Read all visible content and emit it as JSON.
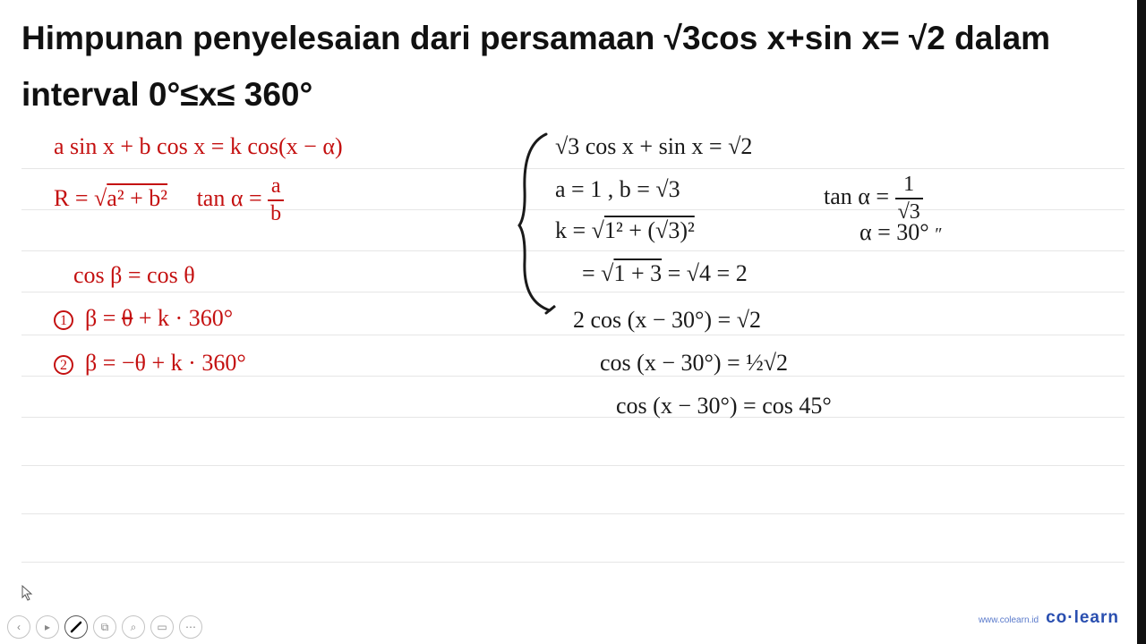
{
  "title": "Himpunan penyelesaian dari persamaan √3cos x+sin x= √2 dalam interval 0°≤x≤ 360°",
  "formulas": {
    "red1": "a sin x + b cos x  =  k cos(x − α)",
    "red2_lhs": "R = √",
    "red2_rad": "a² + b²",
    "red2_tan": "tan α =",
    "red2_frac_num": "a",
    "red2_frac_den": "b",
    "red3": "cos β = cos θ",
    "red4_circ": "1",
    "red4": "β = θ + k · 360°",
    "red5_circ": "2",
    "red5": "β = −θ + k · 360°"
  },
  "work": {
    "w1": "√3 cos x + sin x = √2",
    "w2": "a = 1 ,  b = √3",
    "w3": "k = √",
    "w3_rad": "1² + (√3)²",
    "w4": "= √",
    "w4_rad": "1 + 3",
    "w4_tail": "  = √4 = 2",
    "w5": "tan α =",
    "w5_num": "1",
    "w5_den": "√3",
    "w6": "α = 30°",
    "w7": "2 cos (x − 30°)  = √2",
    "w8": "cos (x − 30°)  = ½√2",
    "w9": "cos (x − 30°) = cos 45°"
  },
  "brand_url": "www.colearn.id",
  "brand_name": "co·learn",
  "ruled_lines": [
    188,
    234,
    280,
    326,
    374,
    420,
    466,
    520,
    574,
    628
  ]
}
